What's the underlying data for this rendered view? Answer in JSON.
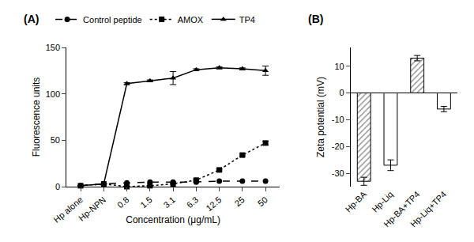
{
  "chart_data": [
    {
      "type": "line",
      "title": "(A)",
      "categories": [
        "Hp alone",
        "Hp-NPN",
        "0.8",
        "1.5",
        "3.1",
        "6.3",
        "12.5",
        "25",
        "50"
      ],
      "x_label": "Concentration (μg/mL)",
      "y_label": "Fluorescence units",
      "series": [
        {
          "name": "Control peptide",
          "color": "#000000",
          "marker": "circle",
          "line_style": "dash",
          "values": [
            1,
            3,
            4,
            5,
            5,
            5,
            6,
            6,
            6
          ]
        },
        {
          "name": "AMOX",
          "color": "#000000",
          "marker": "square",
          "line_style": "dot",
          "values": [
            1,
            3,
            0,
            1,
            3,
            7,
            18,
            34,
            47
          ],
          "errors": [
            0,
            0,
            0,
            0,
            0,
            1,
            1,
            1,
            2
          ]
        },
        {
          "name": "TP4",
          "color": "#000000",
          "marker": "triangle-up",
          "line_style": "solid",
          "values": [
            1,
            3,
            111,
            114,
            117,
            126,
            128,
            127,
            125
          ],
          "errors": [
            0,
            0,
            1,
            1,
            7,
            1,
            1,
            1,
            5
          ]
        }
      ],
      "ylim": [
        0,
        150
      ],
      "yticks": [
        0,
        50,
        100,
        150
      ],
      "grid": false,
      "legend": "top"
    },
    {
      "type": "bar",
      "title": "(B)",
      "categories": [
        "Hp-BA",
        "Hp-Liq",
        "Hp-BA+TP4",
        "Hp-Liq+TP4"
      ],
      "y_label": "Zeta potential (mV)",
      "values": [
        -33,
        -27,
        13,
        -6
      ],
      "errors": [
        1.5,
        2,
        1,
        1
      ],
      "colors": [
        "#999999",
        "#ffffff",
        "#999999",
        "#ffffff"
      ],
      "ylim": [
        -35,
        17
      ],
      "yticks": [
        -30,
        -20,
        -10,
        0,
        10
      ],
      "grid": false
    }
  ]
}
